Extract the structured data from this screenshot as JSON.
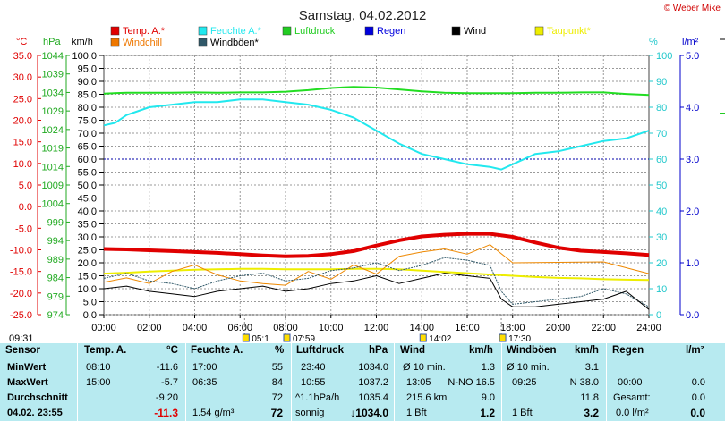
{
  "chart_data": {
    "type": "line",
    "title": "Samstag, 04.02.2012",
    "credit": "© Weber Mike",
    "legend": [
      {
        "name": "Temp. A.*",
        "color": "#e00000"
      },
      {
        "name": "Feuchte A.*",
        "color": "#22e8ee"
      },
      {
        "name": "Luftdruck",
        "color": "#22cc22"
      },
      {
        "name": "Regen",
        "color": "#0000dd"
      },
      {
        "name": "Wind",
        "color": "#000000"
      },
      {
        "name": "Taupunkt*",
        "color": "#eeee00"
      },
      {
        "name": "Windchill",
        "color": "#ee7700"
      },
      {
        "name": "Windböen*",
        "color": "#305868"
      }
    ],
    "axes": {
      "temp_unit": "°C",
      "pressure_unit": "hPa",
      "wind_unit": "km/h",
      "humidity_unit": "%",
      "rain_unit": "l/m²",
      "temp_ticks": [
        "35.0",
        "30.0",
        "25.0",
        "20.0",
        "15.0",
        "10.0",
        "5.0",
        "0.0",
        "-5.0",
        "-10.0",
        "-15.0",
        "-20.0",
        "-25.0"
      ],
      "pressure_ticks": [
        "1044",
        "1039",
        "1034",
        "1029",
        "1024",
        "1019",
        "1014",
        "1009",
        "1004",
        "999",
        "994",
        "989",
        "984",
        "979",
        "974"
      ],
      "wind_ticks": [
        "100.0",
        "95.0",
        "90.0",
        "85.0",
        "80.0",
        "75.0",
        "70.0",
        "65.0",
        "60.0",
        "55.0",
        "50.0",
        "45.0",
        "40.0",
        "35.0",
        "30.0",
        "25.0",
        "20.0",
        "15.0",
        "10.0",
        "5.0",
        "0.0"
      ],
      "humidity_ticks": [
        "100",
        "90",
        "80",
        "70",
        "60",
        "50",
        "40",
        "30",
        "20",
        "10",
        "0"
      ],
      "rain_ticks": [
        "5.0",
        "4.0",
        "3.0",
        "2.0",
        "1.0",
        "0.0"
      ],
      "x_ticks": [
        "00:00",
        "02:00",
        "04:00",
        "06:00",
        "08:00",
        "10:00",
        "12:00",
        "14:00",
        "16:00",
        "18:00",
        "20:00",
        "22:00",
        "24:00"
      ],
      "x_range": [
        0,
        24
      ]
    },
    "series": [
      {
        "name": "Temp. A.*",
        "axis": "temp",
        "x": [
          0,
          1,
          2,
          3,
          4,
          5,
          6,
          7,
          8,
          9,
          10,
          11,
          12,
          13,
          14,
          15,
          16,
          17,
          18,
          19,
          20,
          21,
          22,
          23,
          24
        ],
        "values": [
          -9.8,
          -9.9,
          -10.1,
          -10.3,
          -10.5,
          -10.7,
          -11.0,
          -11.3,
          -11.5,
          -11.4,
          -11.0,
          -10.3,
          -9.0,
          -7.8,
          -6.9,
          -6.5,
          -6.3,
          -6.3,
          -7.0,
          -8.3,
          -9.5,
          -10.2,
          -10.5,
          -10.8,
          -11.2
        ]
      },
      {
        "name": "Feuchte A.*",
        "axis": "humidity",
        "x": [
          0,
          0.5,
          1,
          2,
          3,
          4,
          5,
          6,
          7,
          8,
          9,
          10,
          11,
          12,
          13,
          14,
          15,
          16,
          17,
          17.5,
          18,
          19,
          20,
          21,
          22,
          23,
          24
        ],
        "values": [
          73,
          74,
          77,
          80,
          81,
          82,
          82,
          83,
          83,
          82,
          81,
          79,
          76,
          71,
          66,
          62,
          60,
          58,
          57,
          56,
          58,
          62,
          63,
          65,
          67,
          68,
          71
        ]
      },
      {
        "name": "Luftdruck",
        "axis": "pressure",
        "x": [
          0,
          1,
          2,
          3,
          4,
          5,
          6,
          7,
          8,
          9,
          10,
          11,
          12,
          13,
          14,
          15,
          16,
          17,
          18,
          19,
          20,
          21,
          22,
          23,
          24
        ],
        "values": [
          1033.7,
          1033.9,
          1033.9,
          1033.9,
          1034.0,
          1033.9,
          1034.0,
          1034.0,
          1034.2,
          1034.6,
          1035.2,
          1035.5,
          1035.3,
          1034.8,
          1034.3,
          1033.9,
          1033.8,
          1033.8,
          1033.8,
          1033.9,
          1033.9,
          1034.0,
          1034.0,
          1033.6,
          1033.3
        ]
      },
      {
        "name": "Taupunkt*",
        "axis": "temp",
        "x": [
          0,
          1,
          2,
          3,
          4,
          5,
          6,
          7,
          8,
          9,
          10,
          11,
          12,
          13,
          14,
          15,
          16,
          17,
          18,
          19,
          20,
          21,
          22,
          23,
          24
        ],
        "values": [
          -15.5,
          -15.3,
          -15.0,
          -14.8,
          -14.6,
          -14.5,
          -14.4,
          -14.4,
          -14.5,
          -14.5,
          -14.5,
          -14.4,
          -14.4,
          -14.5,
          -14.8,
          -15.1,
          -15.4,
          -15.7,
          -16.0,
          -16.3,
          -16.5,
          -16.6,
          -16.8,
          -16.9,
          -17.0
        ]
      },
      {
        "name": "Windchill",
        "axis": "temp",
        "x": [
          0,
          1,
          2,
          3,
          4,
          5,
          6,
          7,
          8,
          9,
          10,
          11,
          12,
          13,
          14,
          15,
          16,
          17,
          18,
          22,
          24
        ],
        "values": [
          -17.5,
          -16.5,
          -17.8,
          -15.0,
          -13.5,
          -15.8,
          -17.2,
          -17.8,
          -18.2,
          -15.0,
          -16.8,
          -13.5,
          -15.6,
          -11.5,
          -10.5,
          -9.8,
          -11.0,
          -8.8,
          -13.0,
          -12.8,
          -15.5
        ]
      },
      {
        "name": "Wind",
        "axis": "wind",
        "x": [
          0,
          1,
          2,
          3,
          4,
          5,
          6,
          7,
          8,
          9,
          10,
          11,
          12,
          13,
          14,
          15,
          16,
          17,
          17.5,
          18,
          19,
          20,
          21,
          22,
          23,
          24
        ],
        "values": [
          10,
          11,
          9,
          8,
          7,
          9,
          10,
          11,
          9,
          10,
          12,
          13,
          15,
          12,
          14,
          16,
          15,
          14,
          6,
          3,
          3,
          4,
          5,
          6,
          9,
          2
        ]
      },
      {
        "name": "Windböen*",
        "axis": "wind",
        "x": [
          0,
          1,
          2,
          3,
          4,
          5,
          6,
          7,
          8,
          9,
          10,
          11,
          12,
          13,
          14,
          15,
          16,
          17,
          17.5,
          18,
          19,
          20,
          21,
          22,
          23,
          24
        ],
        "values": [
          14,
          16,
          13,
          12,
          10,
          13,
          15,
          16,
          13,
          14,
          17,
          18,
          20,
          17,
          19,
          22,
          21,
          19,
          9,
          4,
          5,
          6,
          7,
          10,
          8,
          3
        ]
      }
    ],
    "markers": [
      {
        "label": "05:1",
        "x": 6.2
      },
      {
        "label": "07:59",
        "x": 8.0
      },
      {
        "label": "14:02",
        "x": 14.0
      },
      {
        "label": "17:30",
        "x": 17.5
      }
    ],
    "left_time": "09:31"
  },
  "table": {
    "headers": {
      "sensor": "Sensor",
      "temp": "Temp. A.",
      "temp_unit": "°C",
      "hum": "Feuchte A.",
      "hum_unit": "%",
      "press": "Luftdruck",
      "press_unit": "hPa",
      "wind": "Wind",
      "wind_unit": "km/h",
      "gust": "Windböen",
      "gust_unit": "km/h",
      "rain": "Regen",
      "rain_unit": "l/m²"
    },
    "rows": {
      "min": {
        "label": "MinWert",
        "temp_time": "08:10",
        "temp": "-11.6",
        "hum_time": "17:00",
        "hum": "55",
        "press_time": "23:40",
        "press": "1034.0",
        "wind_desc": "Ø 10 min.",
        "wind": "1.3",
        "gust_desc": "Ø 10 min.",
        "gust": "3.1",
        "rain_time": "",
        "rain": ""
      },
      "max": {
        "label": "MaxWert",
        "temp_time": "15:00",
        "temp": "-5.7",
        "hum_time": "06:35",
        "hum": "84",
        "press_time": "10:55",
        "press": "1037.2",
        "wind_time": "13:05",
        "wind_dir": "N-NO 16.5",
        "gust_time": "09:25",
        "gust_dir": "N 38.0",
        "rain_time": "00:00",
        "rain": "0.0"
      },
      "avg": {
        "label": "Durchschnitt",
        "temp": "-9.20",
        "hum": "72",
        "press_trend": "^1.1hPa/h",
        "press": "1035.4",
        "wind_dist": "215.6 km",
        "wind": "9.0",
        "gust": "11.8",
        "rain_label": "Gesamt:",
        "rain": "0.0"
      },
      "cur": {
        "label": "04.02. 23:55",
        "temp": "-11.3",
        "hum_abs": "1.54 g/m³",
        "hum": "72",
        "press_desc": "sonnig",
        "press": "↓1034.0",
        "wind_bft": "1 Bft",
        "wind": "1.2",
        "gust_bft": "1 Bft",
        "gust": "3.2",
        "rain_val": "0.0 l/m²",
        "rain": "0.0"
      }
    }
  }
}
